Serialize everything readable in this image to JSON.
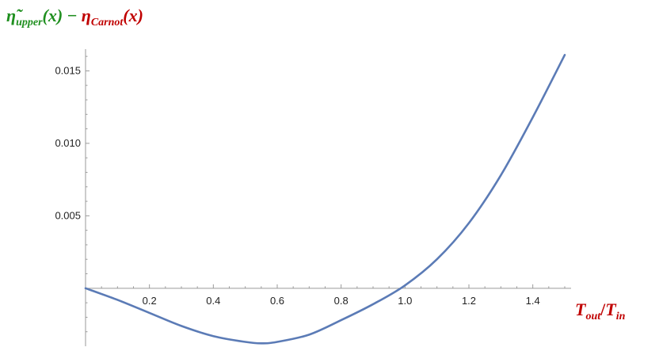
{
  "colors": {
    "series": "#5b7bb6",
    "axis": "#9a9a9a",
    "title_green": "#1f8f1f",
    "title_red": "#c00000",
    "label_text": "#222222"
  },
  "title": {
    "green_symbol": "η̃",
    "green_sub": "upper",
    "green_arg": "(x)",
    "minus": " − ",
    "red_symbol": "η",
    "red_sub": "Carnot",
    "red_arg": "(x)"
  },
  "xlabel": {
    "num": "T",
    "num_sub": "out",
    "sep": "/",
    "den": "T",
    "den_sub": "in"
  },
  "chart_data": {
    "type": "line",
    "xlim": [
      0,
      1.5
    ],
    "ylim": [
      -0.004,
      0.0165
    ],
    "xticks": [
      0.2,
      0.4,
      0.6,
      0.8,
      1.0,
      1.2,
      1.4
    ],
    "xtick_labels": [
      "0.2",
      "0.4",
      "0.6",
      "0.8",
      "1.0",
      "1.2",
      "1.4"
    ],
    "yticks": [
      0.005,
      0.01,
      0.015
    ],
    "ytick_labels": [
      "0.005",
      "0.010",
      "0.015"
    ],
    "grid": false,
    "series": [
      {
        "x": [
          0,
          0.1,
          0.2,
          0.3,
          0.4,
          0.5,
          0.55,
          0.6,
          0.7,
          0.8,
          0.9,
          1.0,
          1.1,
          1.2,
          1.3,
          1.4,
          1.5
        ],
        "y": [
          0,
          -0.0008,
          -0.0017,
          -0.0026,
          -0.0033,
          -0.0037,
          -0.0038,
          -0.0037,
          -0.0032,
          -0.0022,
          -0.0011,
          0.0002,
          0.002,
          0.0045,
          0.0078,
          0.0118,
          0.0161
        ]
      }
    ]
  }
}
